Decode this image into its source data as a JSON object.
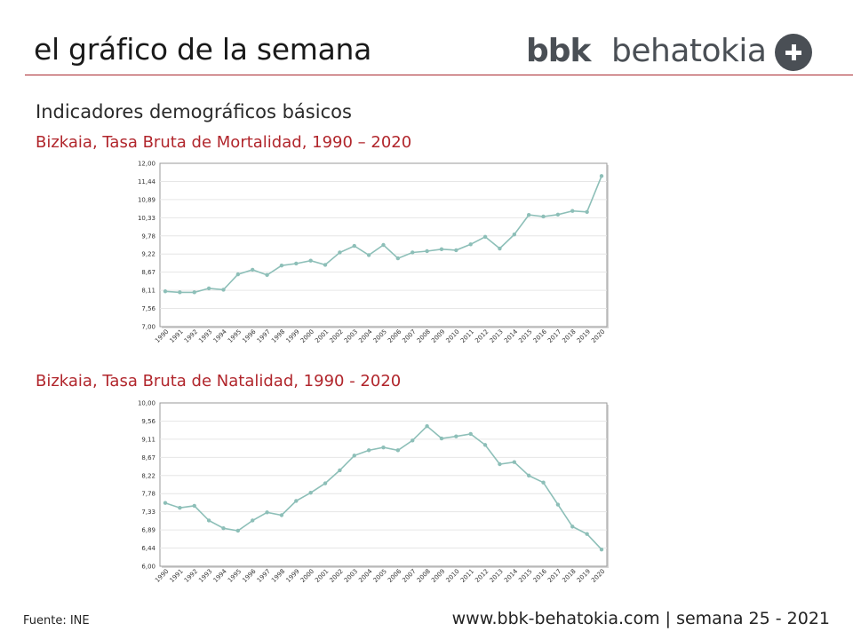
{
  "header": {
    "title": "el gráfico de la semana",
    "logo_bold": "bbk",
    "logo_light": "behatokia"
  },
  "subtitle": "Indicadores demográficos básicos",
  "footer": {
    "source": "Fuente:  INE",
    "site": "www.bbk-behatokia.com | semana 25 - 2021"
  },
  "colors": {
    "accent": "#b1262c",
    "line": "#8dbfb8",
    "logo": "#4a4f55"
  },
  "chart_data": [
    {
      "type": "line",
      "title": "Bizkaia, Tasa Bruta de Mortalidad, 1990 – 2020",
      "ylim": [
        7.0,
        12.0
      ],
      "yticks": [
        "12,00",
        "11,44",
        "10,89",
        "10,33",
        "9,78",
        "9,22",
        "8,67",
        "8,11",
        "7,56",
        "7,00"
      ],
      "categories": [
        "1990",
        "1991",
        "1992",
        "1993",
        "1994",
        "1995",
        "1996",
        "1997",
        "1998",
        "1999",
        "2000",
        "2001",
        "2002",
        "2003",
        "2004",
        "2005",
        "2006",
        "2007",
        "2008",
        "2009",
        "2010",
        "2011",
        "2012",
        "2013",
        "2014",
        "2015",
        "2016",
        "2017",
        "2018",
        "2019",
        "2020"
      ],
      "series": [
        {
          "values": [
            8.08,
            8.05,
            8.05,
            8.17,
            8.13,
            8.6,
            8.74,
            8.58,
            8.87,
            8.93,
            9.02,
            8.89,
            9.27,
            9.47,
            9.19,
            9.5,
            9.09,
            9.27,
            9.31,
            9.37,
            9.34,
            9.52,
            9.75,
            9.39,
            9.82,
            10.42,
            10.37,
            10.43,
            10.54,
            10.51,
            11.61
          ]
        }
      ],
      "grid": true
    },
    {
      "type": "line",
      "title": "Bizkaia, Tasa Bruta de Natalidad, 1990 - 2020",
      "ylim": [
        6.0,
        10.0
      ],
      "yticks": [
        "10,00",
        "9,56",
        "9,11",
        "8,67",
        "8,22",
        "7,78",
        "7,33",
        "6,89",
        "6,44",
        "6,00"
      ],
      "categories": [
        "1990",
        "1991",
        "1992",
        "1993",
        "1994",
        "1995",
        "1996",
        "1997",
        "1998",
        "1999",
        "2000",
        "2001",
        "2002",
        "2003",
        "2004",
        "2005",
        "2006",
        "2007",
        "2008",
        "2009",
        "2010",
        "2011",
        "2012",
        "2013",
        "2014",
        "2015",
        "2016",
        "2017",
        "2018",
        "2019",
        "2020"
      ],
      "series": [
        {
          "values": [
            7.55,
            7.43,
            7.48,
            7.12,
            6.93,
            6.87,
            7.12,
            7.32,
            7.25,
            7.6,
            7.8,
            8.03,
            8.35,
            8.71,
            8.84,
            8.91,
            8.84,
            9.08,
            9.43,
            9.13,
            9.18,
            9.24,
            8.97,
            8.5,
            8.55,
            8.22,
            8.05,
            7.51,
            6.97,
            6.79,
            6.41
          ]
        }
      ],
      "grid": true
    }
  ]
}
